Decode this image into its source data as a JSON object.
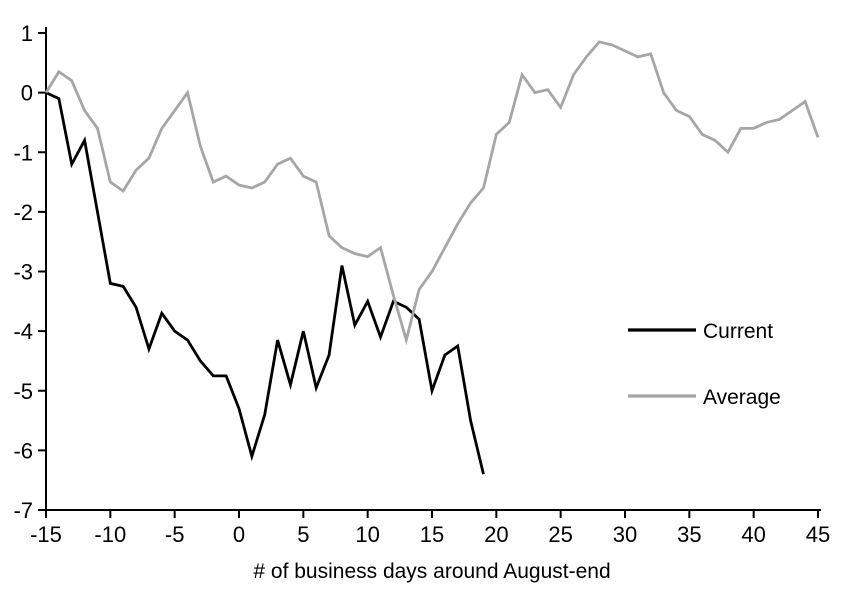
{
  "chart_data": {
    "type": "line",
    "title": "",
    "xlabel": "# of business days around August-end",
    "ylabel": "",
    "xlim": [
      -15,
      45
    ],
    "ylim": [
      -7,
      1
    ],
    "xticks": [
      -15,
      -10,
      -5,
      0,
      5,
      10,
      15,
      20,
      25,
      30,
      35,
      40,
      45
    ],
    "yticks": [
      -7,
      -6,
      -5,
      -4,
      -3,
      -2,
      -1,
      0,
      1
    ],
    "grid": false,
    "legend_position": "inside-right-middle",
    "series": [
      {
        "name": "Current",
        "color": "#000000",
        "x_start": -15,
        "x_step": 1,
        "values": [
          0.0,
          -0.1,
          -1.2,
          -0.8,
          -2.0,
          -3.2,
          -3.25,
          -3.6,
          -4.3,
          -3.7,
          -4.0,
          -4.15,
          -4.5,
          -4.75,
          -4.75,
          -5.3,
          -6.1,
          -5.4,
          -4.15,
          -4.9,
          -4.0,
          -4.95,
          -4.4,
          -2.9,
          -3.9,
          -3.5,
          -4.1,
          -3.5,
          -3.6,
          -3.8,
          -5.0,
          -4.4,
          -4.25,
          -5.5,
          -6.4
        ]
      },
      {
        "name": "Average",
        "color": "#a6a6a6",
        "x_start": -15,
        "x_step": 1,
        "values": [
          0.0,
          0.35,
          0.2,
          -0.3,
          -0.6,
          -1.5,
          -1.65,
          -1.3,
          -1.1,
          -0.6,
          -0.3,
          0.0,
          -0.9,
          -1.5,
          -1.4,
          -1.55,
          -1.6,
          -1.5,
          -1.2,
          -1.1,
          -1.4,
          -1.5,
          -2.4,
          -2.6,
          -2.7,
          -2.75,
          -2.6,
          -3.4,
          -4.15,
          -3.3,
          -3.0,
          -2.6,
          -2.2,
          -1.85,
          -1.6,
          -0.7,
          -0.5,
          0.3,
          0.0,
          0.05,
          -0.25,
          0.3,
          0.6,
          0.85,
          0.8,
          0.7,
          0.6,
          0.65,
          0.0,
          -0.3,
          -0.4,
          -0.7,
          -0.8,
          -1.0,
          -0.6,
          -0.6,
          -0.5,
          -0.45,
          -0.3,
          -0.15,
          -0.75
        ]
      }
    ]
  },
  "legend": {
    "items": [
      {
        "label": "Current",
        "color": "#000000"
      },
      {
        "label": "Average",
        "color": "#a6a6a6"
      }
    ]
  },
  "colors": {
    "axis": "#000000",
    "background": "#ffffff",
    "current_line": "#000000",
    "average_line": "#a6a6a6"
  }
}
